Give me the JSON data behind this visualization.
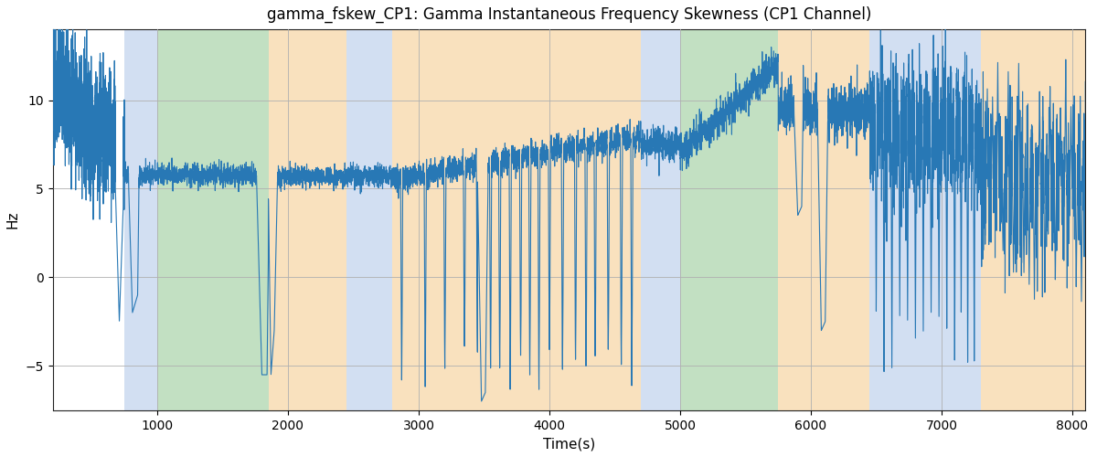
{
  "title": "gamma_fskew_CP1: Gamma Instantaneous Frequency Skewness (CP1 Channel)",
  "xlabel": "Time(s)",
  "ylabel": "Hz",
  "xlim": [
    200,
    8100
  ],
  "ylim": [
    -7.5,
    14
  ],
  "figsize": [
    12.0,
    5.0
  ],
  "dpi": 100,
  "line_color": "#2878b5",
  "line_width": 0.8,
  "background_color": "#ffffff",
  "grid_color": "#b0b0b0",
  "colored_bands": [
    {
      "xmin": 750,
      "xmax": 1000,
      "color": "#adc6e8",
      "alpha": 0.55
    },
    {
      "xmin": 1000,
      "xmax": 1850,
      "color": "#90c890",
      "alpha": 0.55
    },
    {
      "xmin": 1850,
      "xmax": 2450,
      "color": "#f5c98a",
      "alpha": 0.55
    },
    {
      "xmin": 2450,
      "xmax": 2800,
      "color": "#adc6e8",
      "alpha": 0.55
    },
    {
      "xmin": 2800,
      "xmax": 4700,
      "color": "#f5c98a",
      "alpha": 0.55
    },
    {
      "xmin": 4700,
      "xmax": 5000,
      "color": "#adc6e8",
      "alpha": 0.55
    },
    {
      "xmin": 5000,
      "xmax": 5750,
      "color": "#90c890",
      "alpha": 0.55
    },
    {
      "xmin": 5750,
      "xmax": 6450,
      "color": "#f5c98a",
      "alpha": 0.55
    },
    {
      "xmin": 6450,
      "xmax": 7300,
      "color": "#adc6e8",
      "alpha": 0.55
    },
    {
      "xmin": 7300,
      "xmax": 8100,
      "color": "#f5c98a",
      "alpha": 0.55
    }
  ],
  "yticks": [
    -5,
    0,
    5,
    10
  ],
  "xticks": [
    1000,
    2000,
    3000,
    4000,
    5000,
    6000,
    7000,
    8000
  ]
}
